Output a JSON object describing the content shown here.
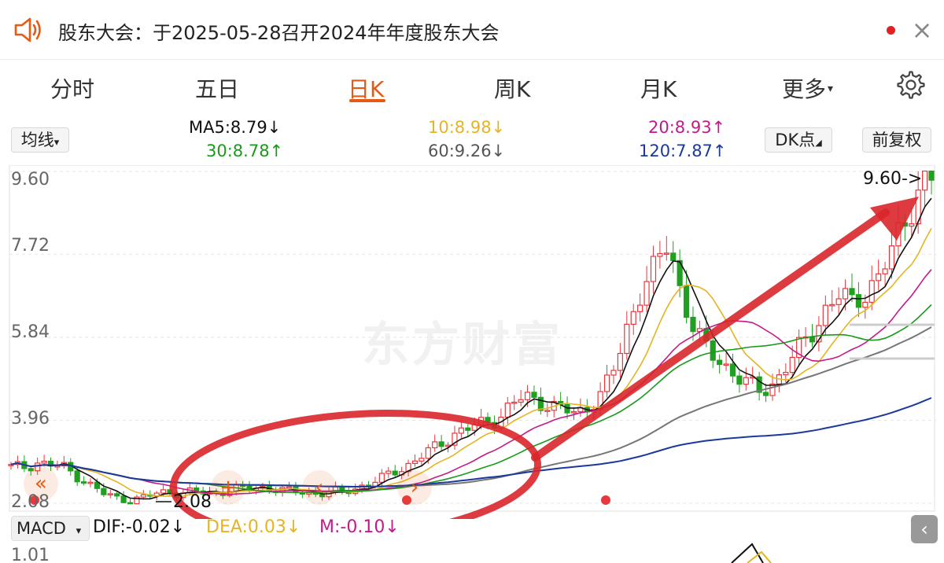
{
  "notice": {
    "icon": "speaker-icon",
    "text": "股东大会：于2025-05-28召开2024年年度股东大会",
    "close_label": "×"
  },
  "tabs": [
    {
      "label": "分时",
      "active": false
    },
    {
      "label": "五日",
      "active": false
    },
    {
      "label": "日K",
      "active": true
    },
    {
      "label": "周K",
      "active": false
    },
    {
      "label": "月K",
      "active": false
    },
    {
      "label": "更多",
      "active": false
    }
  ],
  "settings_icon": "gear-icon",
  "ma": {
    "selector_label": "均线",
    "ma5": "MA5:8.79↓",
    "ma10": "10:8.98↓",
    "ma20": "20:8.93↑",
    "ma30": "30:8.78↑",
    "ma60": "60:9.26↓",
    "ma120": "120:7.87↑",
    "dk_label": "DK点",
    "adjust_label": "前复权"
  },
  "colors": {
    "up": "#e8383d",
    "down": "#20a020",
    "ma5": "#111111",
    "ma10": "#e6b422",
    "ma20": "#c21a8c",
    "ma30": "#1a9a1a",
    "ma60": "#777777",
    "ma120": "#1a3a9a",
    "accent": "#e85a13",
    "annotation": "#d9262b"
  },
  "chart": {
    "y_ticks": [
      "9.60",
      "7.72",
      "5.84",
      "3.96",
      "2.08"
    ],
    "max_label": "9.60->",
    "min_label": "2.08",
    "watermark": "东方财富"
  },
  "macd": {
    "selector_label": "MACD",
    "dif": "DIF:-0.02↓",
    "dea": "DEA:0.03↓",
    "m": "M:-0.10↓",
    "top_value": "1.01"
  },
  "chart_data": {
    "type": "candlestick",
    "ylim": [
      2.08,
      9.6
    ],
    "y_ticks": [
      9.6,
      7.72,
      5.84,
      3.96,
      2.08
    ],
    "max_price": 9.6,
    "min_price": 2.08,
    "series": [
      {
        "name": "MA5",
        "last": 8.79
      },
      {
        "name": "10",
        "last": 8.98
      },
      {
        "name": "20",
        "last": 8.93
      },
      {
        "name": "30",
        "last": 8.78
      },
      {
        "name": "60",
        "last": 9.26
      },
      {
        "name": "120",
        "last": 7.87
      }
    ],
    "approx_close_path": [
      2.9,
      2.9,
      3.0,
      2.95,
      2.9,
      2.7,
      2.5,
      2.3,
      2.2,
      2.15,
      2.2,
      2.3,
      2.35,
      2.3,
      2.35,
      2.3,
      2.35,
      2.4,
      2.4,
      2.45,
      2.4,
      2.35,
      2.35,
      2.3,
      2.3,
      2.35,
      2.4,
      2.5,
      2.6,
      2.8,
      2.9,
      3.1,
      3.3,
      3.5,
      3.7,
      3.8,
      3.9,
      4.0,
      4.3,
      4.5,
      4.4,
      4.3,
      4.2,
      4.1,
      4.3,
      4.6,
      5.2,
      6.2,
      7.0,
      7.4,
      8.0,
      6.8,
      6.0,
      5.5,
      5.3,
      5.0,
      4.8,
      4.6,
      4.8,
      5.2,
      5.6,
      6.0,
      6.5,
      6.8,
      6.6,
      6.9,
      7.2,
      7.8,
      8.5,
      9.2,
      9.5
    ]
  }
}
